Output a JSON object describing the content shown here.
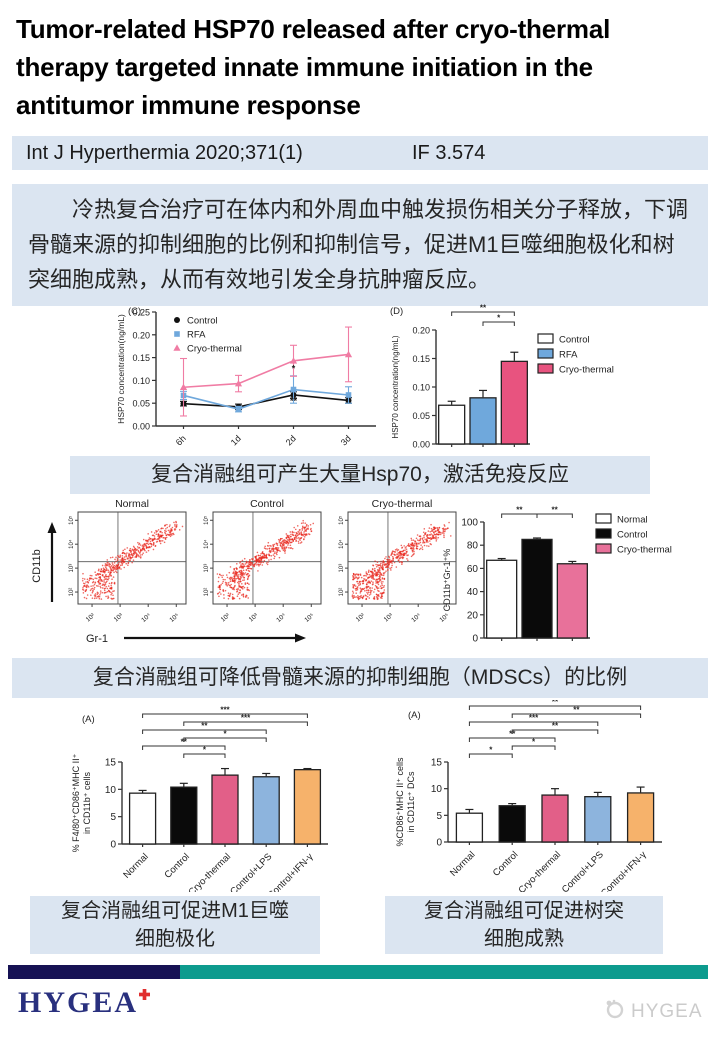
{
  "title": "Tumor-related HSP70 released after cryo-thermal therapy targeted innate immune initiation in the antitumor immune response",
  "journal_bar": {
    "journal": "Int J Hyperthermia 2020;371(1)",
    "impact_factor": "IF 3.574",
    "bg": "#dbe5f1"
  },
  "summary": {
    "text": "冷热复合治疗可在体内和外周血中触发损伤相关分子释放，下调骨髓来源的抑制细胞的比例和抑制信号，促进M1巨噬细胞极化和树突细胞成熟，从而有效地引发全身抗肿瘤反应。"
  },
  "captions": {
    "hsp70": "复合消融组可产生大量Hsp70，激活免疫反应",
    "mdsc": "复合消融组可降低骨髓来源的抑制细胞（MDSCs）的比例",
    "macrophage": "复合消融组可促进M1巨噬\n细胞极化",
    "dc": "复合消融组可促进树突\n细胞成熟"
  },
  "footer": {
    "brand": "HYGEA",
    "watermark": "HYGEA",
    "navy": "#161254",
    "teal": "#0d9b8e",
    "brand_color": "#29307e",
    "cross_color": "#e02f2f"
  },
  "chart_data": [
    {
      "id": "hsp70_timecourse",
      "type": "line",
      "panel_label": "(C)",
      "title": "",
      "ylabel": "HSP70 concentration(ng/mL)",
      "ylim": [
        0,
        0.25
      ],
      "yticks": [
        "0.00",
        "0.05",
        "0.10",
        "0.15",
        "0.20",
        "0.25"
      ],
      "x": [
        "6h",
        "1d",
        "2d",
        "3d"
      ],
      "series": [
        {
          "name": "Control",
          "color": "#111111",
          "marker": "circle",
          "values": [
            0.049,
            0.042,
            0.068,
            0.056
          ],
          "errors": [
            0.005,
            0.006,
            0.007,
            0.006
          ]
        },
        {
          "name": "RFA",
          "color": "#6fa8dc",
          "marker": "square",
          "values": [
            0.067,
            0.037,
            0.08,
            0.068
          ],
          "errors": [
            0.009,
            0.006,
            0.03,
            0.018
          ]
        },
        {
          "name": "Cryo-thermal",
          "color": "#f07ca4",
          "marker": "triangle",
          "values": [
            0.085,
            0.093,
            0.143,
            0.157
          ],
          "errors": [
            0.063,
            0.018,
            0.034,
            0.06
          ]
        }
      ],
      "annotations": [
        {
          "x": 2,
          "y": 0.12,
          "label": "*"
        },
        {
          "x": 2,
          "y": 0.048,
          "label": "**"
        }
      ],
      "legend_position": "top-left-inside"
    },
    {
      "id": "hsp70_day3",
      "type": "bar",
      "panel_label": "(D)",
      "ylabel": "HSP70 concentration(ng/mL)",
      "ylim": [
        0,
        0.2
      ],
      "yticks": [
        "0.00",
        "0.05",
        "0.10",
        "0.15",
        "0.20"
      ],
      "categories": [
        "Control",
        "RFA",
        "Cryo-thermal"
      ],
      "values": [
        0.068,
        0.081,
        0.145
      ],
      "errors": [
        0.007,
        0.013,
        0.016
      ],
      "colors": [
        "#ffffff",
        "#6fa8dc",
        "#e8537f"
      ],
      "significance": [
        {
          "a": 1,
          "b": 2,
          "label": "*",
          "level": 0
        },
        {
          "a": 0,
          "b": 2,
          "label": "**",
          "level": 1
        }
      ],
      "legend": {
        "position": "right",
        "items": [
          {
            "label": "Control",
            "color": "#ffffff"
          },
          {
            "label": "RFA",
            "color": "#6fa8dc"
          },
          {
            "label": "Cryo-thermal",
            "color": "#e8537f"
          }
        ]
      }
    },
    {
      "id": "mdsc_flow",
      "type": "scatter-panels",
      "panels": [
        "Normal",
        "Control",
        "Cryo-thermal"
      ],
      "xlabel": "Gr-1",
      "ylabel": "CD11b",
      "axis_ticks": [
        "10²",
        "10³",
        "10⁴",
        "10⁵"
      ],
      "dot_color": "#e8281e"
    },
    {
      "id": "mdsc_percent",
      "type": "bar",
      "ylabel": "CD11b⁺Gr-1⁺%",
      "ylim": [
        0,
        100
      ],
      "yticks": [
        "0",
        "20",
        "40",
        "60",
        "80",
        "100"
      ],
      "categories": [
        "Normal",
        "Control",
        "Cryo-thermal"
      ],
      "values": [
        67,
        85,
        64
      ],
      "errors": [
        1.5,
        1.2,
        2.0
      ],
      "colors": [
        "#ffffff",
        "#0a0a0a",
        "#e8719a"
      ],
      "significance": [
        {
          "a": 0,
          "b": 1,
          "label": "**",
          "level": 0
        },
        {
          "a": 1,
          "b": 2,
          "label": "**",
          "level": 0
        }
      ],
      "legend": {
        "position": "right",
        "items": [
          {
            "label": "Normal",
            "color": "#ffffff"
          },
          {
            "label": "Control",
            "color": "#0a0a0a"
          },
          {
            "label": "Cryo-thermal",
            "color": "#e8719a"
          }
        ]
      }
    },
    {
      "id": "m1_macrophage",
      "type": "bar",
      "panel_label": "(A)",
      "ylabel_lines": [
        "% F4/80⁺CD86⁺MHC II⁺",
        "in CD11b⁺ cells"
      ],
      "ylim": [
        0,
        15
      ],
      "yticks": [
        "0",
        "5",
        "10",
        "15"
      ],
      "categories": [
        "Normal",
        "Control",
        "Cryo-thermal",
        "Control+LPS",
        "Control+IFN-γ"
      ],
      "values": [
        9.3,
        10.4,
        12.6,
        12.3,
        13.6
      ],
      "errors": [
        0.5,
        0.7,
        1.2,
        0.6,
        0.2
      ],
      "colors": [
        "#ffffff",
        "#0a0a0a",
        "#e25f88",
        "#8db4dd",
        "#f6b26b"
      ],
      "rotate_x_labels": true,
      "significance": [
        {
          "a": 1,
          "b": 2,
          "label": "*",
          "level": 0
        },
        {
          "a": 0,
          "b": 2,
          "label": "**",
          "level": 1
        },
        {
          "a": 1,
          "b": 3,
          "label": "*",
          "level": 2
        },
        {
          "a": 0,
          "b": 3,
          "label": "**",
          "level": 3
        },
        {
          "a": 1,
          "b": 4,
          "label": "***",
          "level": 4
        },
        {
          "a": 0,
          "b": 4,
          "label": "***",
          "level": 5
        }
      ]
    },
    {
      "id": "dc_maturation",
      "type": "bar",
      "panel_label": "(A)",
      "ylabel_lines": [
        "%CD86⁺MHC II⁺ cells",
        "in CD11c⁺ DCs"
      ],
      "ylim": [
        0,
        15
      ],
      "yticks": [
        "0",
        "5",
        "10",
        "15"
      ],
      "categories": [
        "Normal",
        "Control",
        "Cryo-thermal",
        "Control+LPS",
        "Control+IFN-γ"
      ],
      "values": [
        5.4,
        6.8,
        8.8,
        8.5,
        9.2
      ],
      "errors": [
        0.7,
        0.4,
        1.2,
        0.8,
        1.1
      ],
      "colors": [
        "#ffffff",
        "#0a0a0a",
        "#e25f88",
        "#8db4dd",
        "#f6b26b"
      ],
      "rotate_x_labels": true,
      "significance": [
        {
          "a": 0,
          "b": 1,
          "label": "*",
          "level": 0
        },
        {
          "a": 1,
          "b": 2,
          "label": "*",
          "level": 1
        },
        {
          "a": 0,
          "b": 2,
          "label": "**",
          "level": 2
        },
        {
          "a": 1,
          "b": 3,
          "label": "**",
          "level": 3
        },
        {
          "a": 0,
          "b": 3,
          "label": "***",
          "level": 4
        },
        {
          "a": 1,
          "b": 4,
          "label": "**",
          "level": 5
        },
        {
          "a": 0,
          "b": 4,
          "label": "**",
          "level": 6
        }
      ]
    }
  ]
}
